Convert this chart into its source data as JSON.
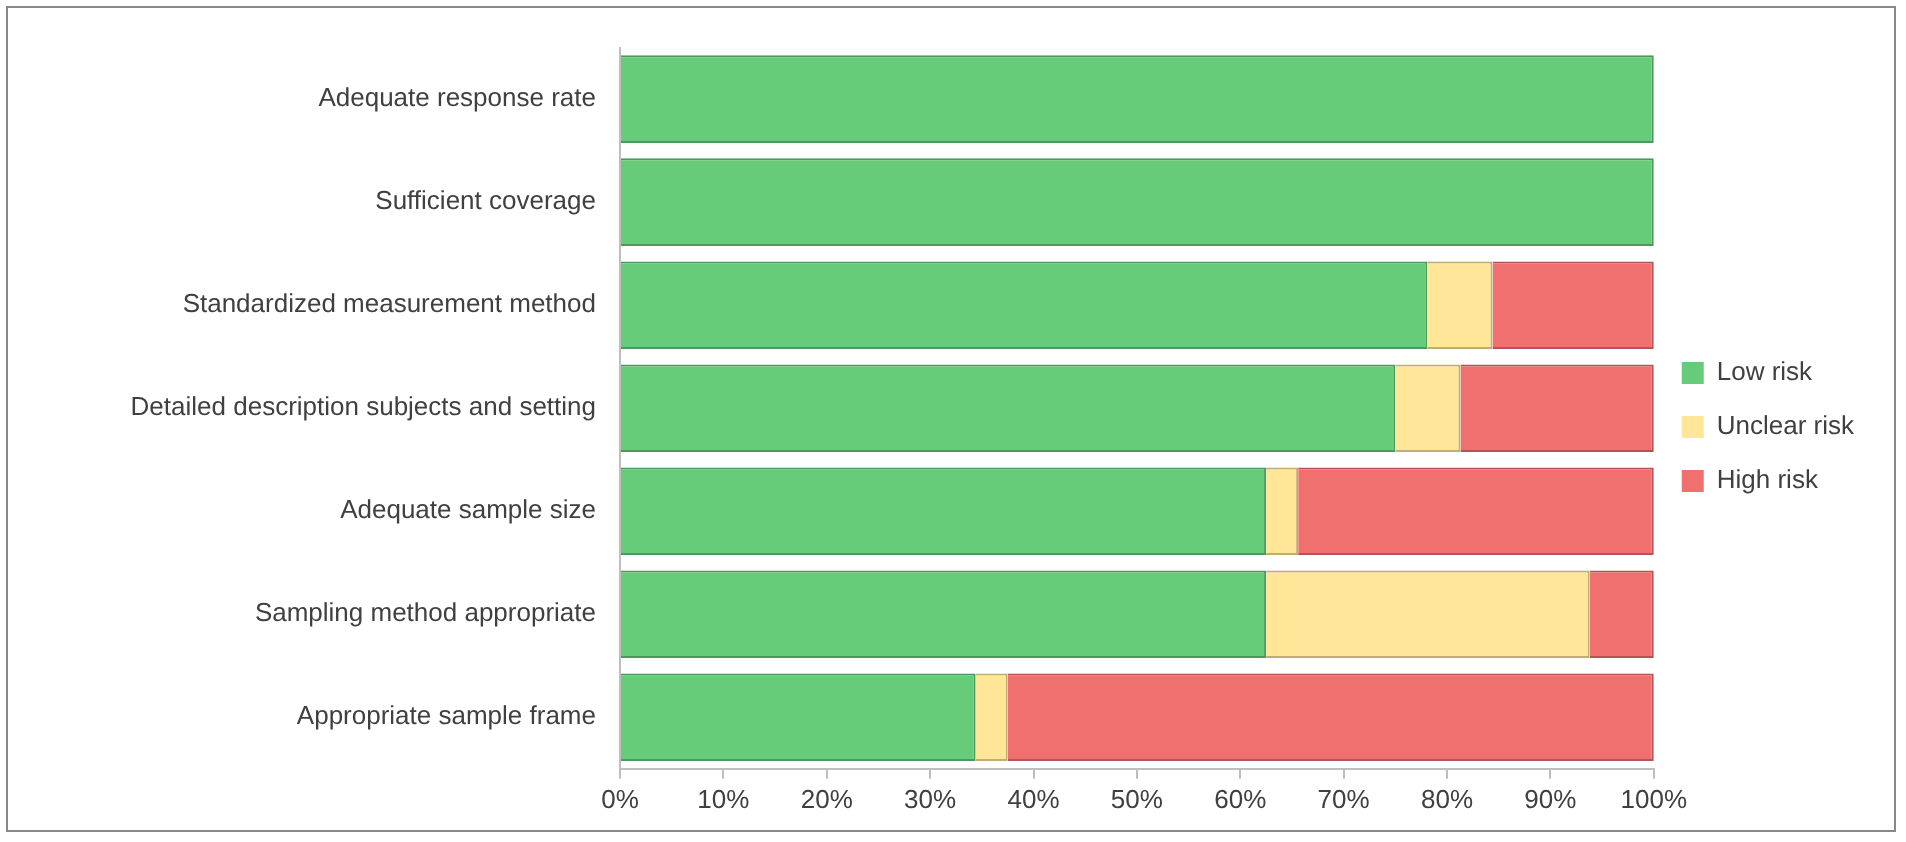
{
  "chart_data": {
    "type": "bar",
    "orientation": "horizontal",
    "stacked": true,
    "categories": [
      "Adequate response rate",
      "Sufficient coverage",
      "Standardized measurement method",
      "Detailed description subjects and setting",
      "Adequate sample size",
      "Sampling method appropriate",
      "Appropriate sample frame"
    ],
    "series": [
      {
        "name": "Low risk",
        "color": "#66cc7a",
        "values": [
          100,
          100,
          78.1,
          75,
          62.5,
          62.5,
          34.4
        ]
      },
      {
        "name": "Unclear risk",
        "color": "#ffe699",
        "values": [
          0,
          0,
          6.3,
          6.3,
          3.1,
          31.3,
          3.1
        ]
      },
      {
        "name": "High risk",
        "color": "#f07070",
        "values": [
          0,
          0,
          15.6,
          18.7,
          34.4,
          6.2,
          62.5
        ]
      }
    ],
    "xlim": [
      0,
      100
    ],
    "xticks": [
      {
        "value": 0,
        "label": "0%"
      },
      {
        "value": 10,
        "label": "10%"
      },
      {
        "value": 20,
        "label": "20%"
      },
      {
        "value": 30,
        "label": "30%"
      },
      {
        "value": 40,
        "label": "40%"
      },
      {
        "value": 50,
        "label": "50%"
      },
      {
        "value": 60,
        "label": "60%"
      },
      {
        "value": 70,
        "label": "70%"
      },
      {
        "value": 80,
        "label": "80%"
      },
      {
        "value": 90,
        "label": "90%"
      },
      {
        "value": 100,
        "label": "100%"
      }
    ],
    "grid": false,
    "legend": "right"
  }
}
